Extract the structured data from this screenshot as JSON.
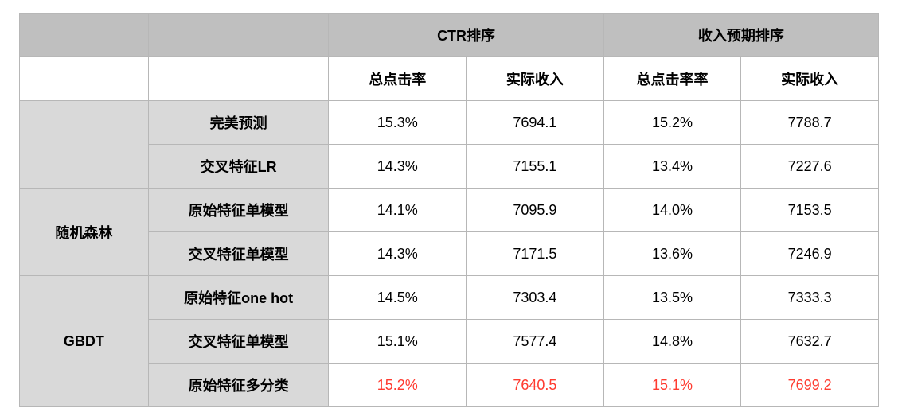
{
  "table": {
    "type": "table",
    "colors": {
      "header_bg": "#bfbfbf",
      "group_bg": "#d9d9d9",
      "label_bg": "#d9d9d9",
      "cell_bg": "#ffffff",
      "border": "#b7b7b7",
      "text": "#000000",
      "highlight": "#ff3b30"
    },
    "font_size": 18,
    "font_weight_header": 700,
    "header_groups": {
      "blank1": "",
      "blank2": "",
      "ctr": "CTR排序",
      "rev": "收入预期排序"
    },
    "subheaders": {
      "blank1": "",
      "blank2": "",
      "ctr_rate": "总点击率",
      "ctr_income": "实际收入",
      "rev_rate": "总点击率率",
      "rev_income": "实际收入"
    },
    "groups": {
      "blank": "",
      "rf": "随机森林",
      "gbdt": "GBDT"
    },
    "rows": [
      {
        "group_key": "blank",
        "label": "完美预测",
        "ctr_rate": "15.3%",
        "ctr_income": "7694.1",
        "rev_rate": "15.2%",
        "rev_income": "7788.7",
        "highlight": false
      },
      {
        "group_key": "blank",
        "label": "交叉特征LR",
        "ctr_rate": "14.3%",
        "ctr_income": "7155.1",
        "rev_rate": "13.4%",
        "rev_income": "7227.6",
        "highlight": false
      },
      {
        "group_key": "rf",
        "label": "原始特征单模型",
        "ctr_rate": "14.1%",
        "ctr_income": "7095.9",
        "rev_rate": "14.0%",
        "rev_income": "7153.5",
        "highlight": false
      },
      {
        "group_key": "rf",
        "label": "交叉特征单模型",
        "ctr_rate": "14.3%",
        "ctr_income": "7171.5",
        "rev_rate": "13.6%",
        "rev_income": "7246.9",
        "highlight": false
      },
      {
        "group_key": "gbdt",
        "label": "原始特征one hot",
        "ctr_rate": "14.5%",
        "ctr_income": "7303.4",
        "rev_rate": "13.5%",
        "rev_income": "7333.3",
        "highlight": false
      },
      {
        "group_key": "gbdt",
        "label": "交叉特征单模型",
        "ctr_rate": "15.1%",
        "ctr_income": "7577.4",
        "rev_rate": "14.8%",
        "rev_income": "7632.7",
        "highlight": false
      },
      {
        "group_key": "gbdt",
        "label": "原始特征多分类",
        "ctr_rate": "15.2%",
        "ctr_income": "7640.5",
        "rev_rate": "15.1%",
        "rev_income": "7699.2",
        "highlight": true
      }
    ]
  }
}
